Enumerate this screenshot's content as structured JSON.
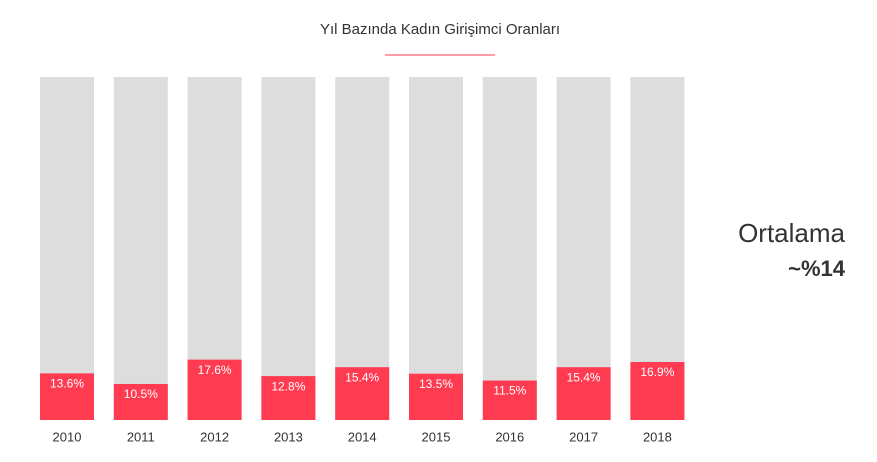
{
  "chart_data": {
    "type": "bar",
    "title": "Yıl Bazında Kadın Girişimci Oranları",
    "categories": [
      "2010",
      "2011",
      "2012",
      "2013",
      "2014",
      "2015",
      "2016",
      "2017",
      "2018"
    ],
    "values": [
      13.6,
      10.5,
      17.6,
      12.8,
      15.4,
      13.5,
      11.5,
      15.4,
      16.9
    ],
    "value_labels": [
      "13.6%",
      "10.5%",
      "17.6%",
      "12.8%",
      "15.4%",
      "13.5%",
      "11.5%",
      "15.4%",
      "16.9%"
    ],
    "color": "#ff3b52",
    "track_color": "#dddddd",
    "ylim": [
      0,
      100
    ],
    "annotations": [
      "Ortalama",
      "~%14"
    ]
  }
}
